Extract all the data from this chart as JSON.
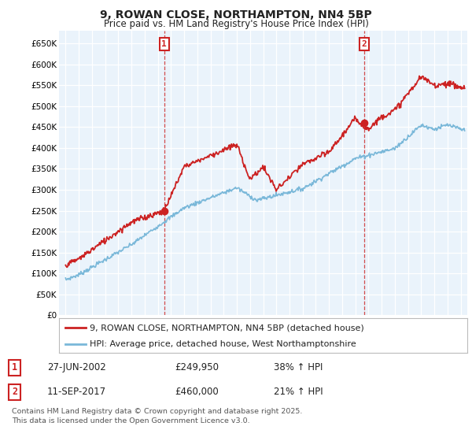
{
  "title": "9, ROWAN CLOSE, NORTHAMPTON, NN4 5BP",
  "subtitle": "Price paid vs. HM Land Registry's House Price Index (HPI)",
  "ylim": [
    0,
    680000
  ],
  "yticks": [
    0,
    50000,
    100000,
    150000,
    200000,
    250000,
    300000,
    350000,
    400000,
    450000,
    500000,
    550000,
    600000,
    650000
  ],
  "yticklabels": [
    "£0",
    "£50K",
    "£100K",
    "£150K",
    "£200K",
    "£250K",
    "£300K",
    "£350K",
    "£400K",
    "£450K",
    "£500K",
    "£550K",
    "£600K",
    "£650K"
  ],
  "xlim": [
    1994.5,
    2025.5
  ],
  "hpi_color": "#7ab8d9",
  "price_color": "#cc2222",
  "chart_bg": "#eaf3fb",
  "marker1_x": 2002.49,
  "marker1_y": 249950,
  "marker2_x": 2017.69,
  "marker2_y": 460000,
  "legend_line1": "9, ROWAN CLOSE, NORTHAMPTON, NN4 5BP (detached house)",
  "legend_line2": "HPI: Average price, detached house, West Northamptonshire",
  "sale1_date": "27-JUN-2002",
  "sale1_price": "£249,950",
  "sale1_hpi": "38% ↑ HPI",
  "sale2_date": "11-SEP-2017",
  "sale2_price": "£460,000",
  "sale2_hpi": "21% ↑ HPI",
  "footnote": "Contains HM Land Registry data © Crown copyright and database right 2025.\nThis data is licensed under the Open Government Licence v3.0.",
  "bg_color": "#ffffff"
}
